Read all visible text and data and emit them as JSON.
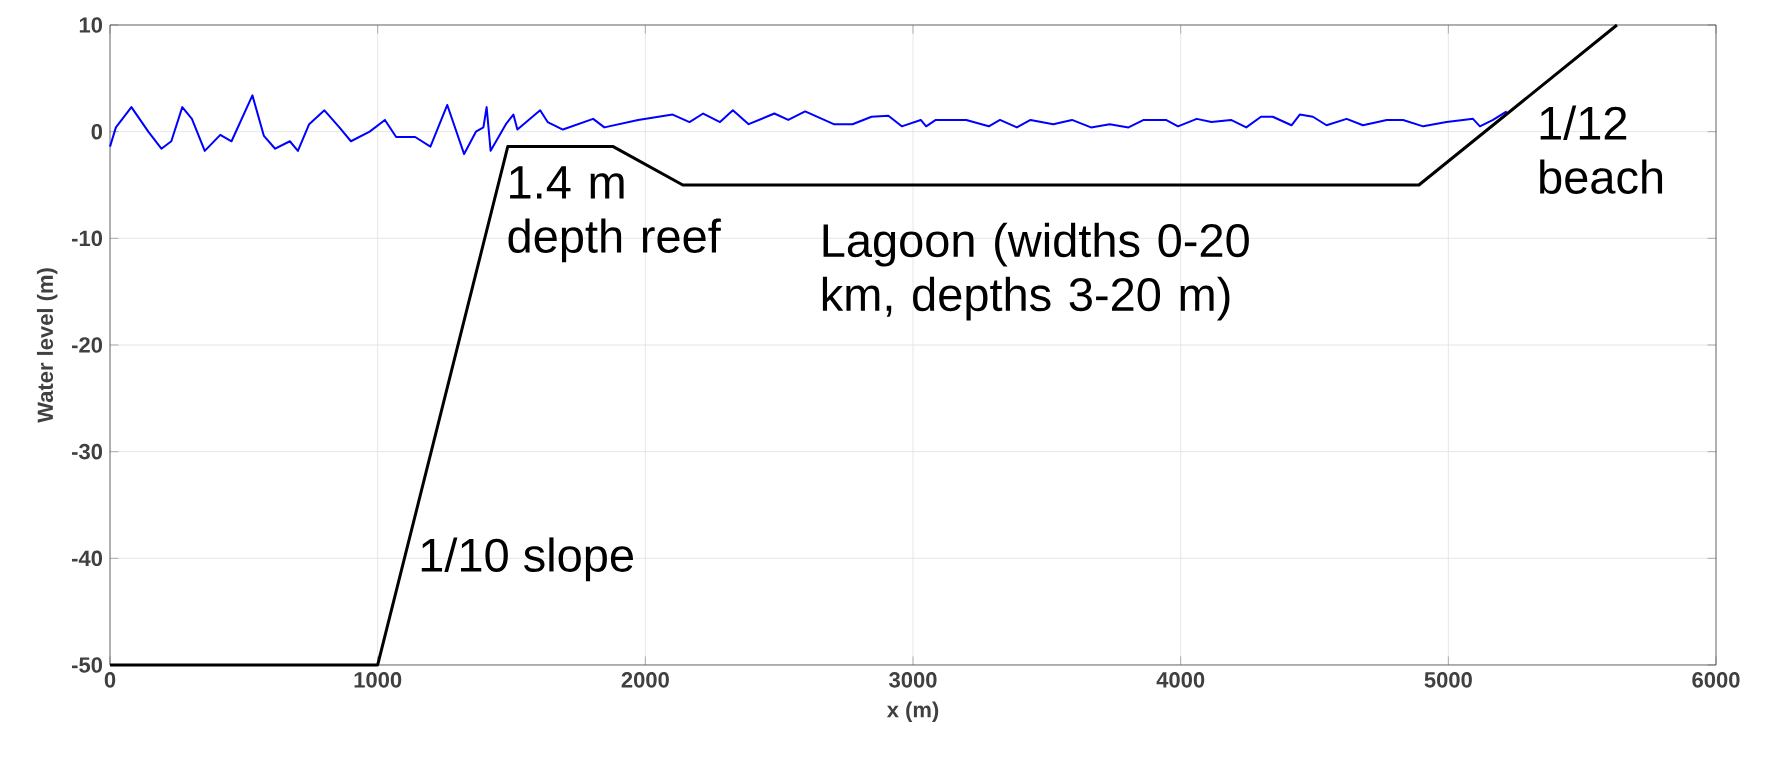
{
  "chart_data": {
    "type": "line",
    "xlabel": "x (m)",
    "ylabel": "Water level (m)",
    "xlim": [
      0,
      6000
    ],
    "ylim": [
      -50,
      10
    ],
    "xticks": [
      0,
      1000,
      2000,
      3000,
      4000,
      5000,
      6000
    ],
    "yticks": [
      -50,
      -40,
      -30,
      -20,
      -10,
      0,
      10
    ],
    "grid": true,
    "series": [
      {
        "color": "#0000ff",
        "x": [
          0,
          22,
          80,
          143,
          192,
          229,
          270,
          306,
          354,
          412,
          454,
          532,
          575,
          617,
          672,
          702,
          744,
          801,
          857,
          900,
          970,
          1027,
          1069,
          1140,
          1197,
          1260,
          1323,
          1367,
          1395,
          1407,
          1422,
          1479,
          1507,
          1522,
          1607,
          1635,
          1692,
          1805,
          1847,
          1973,
          2102,
          2165,
          2216,
          2279,
          2327,
          2386,
          2482,
          2534,
          2597,
          2704,
          2774,
          2845,
          2908,
          2958,
          3029,
          3049,
          3085,
          3199,
          3283,
          3325,
          3388,
          3439,
          3524,
          3594,
          3665,
          3735,
          3805,
          3862,
          3945,
          3990,
          4060,
          4115,
          4188,
          4245,
          4300,
          4344,
          4414,
          4445,
          4494,
          4545,
          4620,
          4681,
          4770,
          4831,
          4906,
          4993,
          5055,
          5092,
          5118,
          5167,
          5218
        ],
        "values": [
          -1.4,
          0.4,
          2.3,
          0,
          -1.6,
          -0.9,
          2.3,
          1.2,
          -1.8,
          -0.3,
          -0.9,
          3.4,
          -0.4,
          -1.6,
          -0.9,
          -1.8,
          0.7,
          2.0,
          0.4,
          -0.9,
          0,
          1.1,
          -0.5,
          -0.5,
          -1.4,
          2.5,
          -2.1,
          0,
          0.4,
          2.3,
          -1.8,
          0.7,
          1.6,
          0.2,
          2.0,
          0.9,
          0.2,
          1.2,
          0.4,
          1.1,
          1.6,
          0.9,
          1.7,
          0.9,
          2.0,
          0.7,
          1.7,
          1.1,
          1.9,
          0.7,
          0.7,
          1.4,
          1.5,
          0.5,
          1.1,
          0.5,
          1.1,
          1.1,
          0.5,
          1.1,
          0.4,
          1.1,
          0.7,
          1.1,
          0.4,
          0.7,
          0.4,
          1.1,
          1.1,
          0.5,
          1.2,
          0.9,
          1.1,
          0.4,
          1.4,
          1.4,
          0.6,
          1.6,
          1.4,
          0.6,
          1.2,
          0.6,
          1.1,
          1.1,
          0.5,
          0.9,
          1.1,
          1.2,
          0.5,
          1.1,
          1.9
        ]
      },
      {
        "color": "#000000",
        "x": [
          0,
          1000,
          1486,
          1880,
          2140,
          4890,
          5630
        ],
        "values": [
          -50,
          -50,
          -1.4,
          -1.4,
          -5,
          -5,
          10
        ]
      }
    ],
    "annotations": [
      "1.4 m depth reef",
      "1/10 slope",
      "Lagoon (widths 0-20 km, depths 3-20 m)",
      "1/12 beach"
    ]
  }
}
